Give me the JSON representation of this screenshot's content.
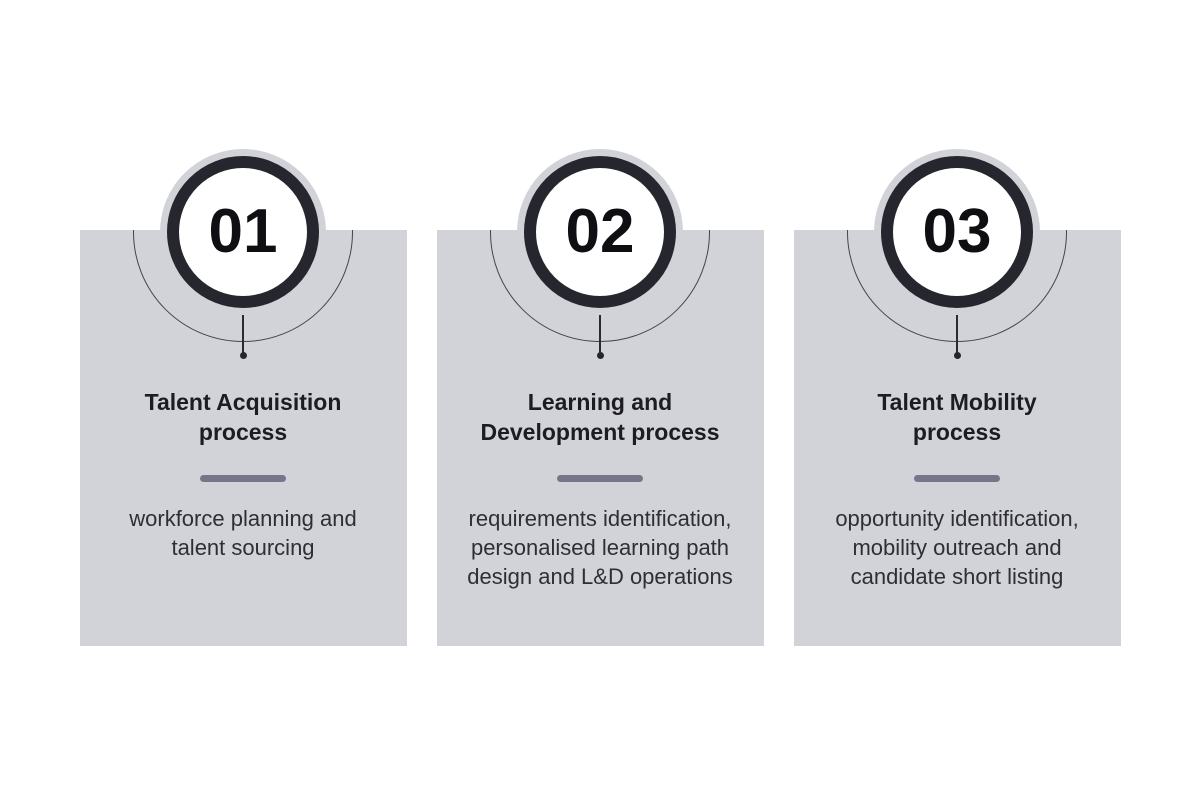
{
  "colors": {
    "page_background": "#ffffff",
    "card_background": "#d2d2d9",
    "circle_ring": "#26262e",
    "circle_fill": "#ffffff",
    "circle_halo": "#d2d2d9",
    "connector_line": "#44444b",
    "divider": "#76768a",
    "number_text": "#0f0f13",
    "title_text": "#1c1c21",
    "description_text": "#2e2e33"
  },
  "cards": [
    {
      "number": "01",
      "title": "Talent Acquisition\nprocess",
      "description": "workforce planning and\ntalent sourcing"
    },
    {
      "number": "02",
      "title": "Learning and\nDevelopment process",
      "description": "requirements identification,\npersonalised learning path\ndesign and L&D operations"
    },
    {
      "number": "03",
      "title": "Talent Mobility\nprocess",
      "description": "opportunity identification,\nmobility outreach and\ncandidate short listing"
    }
  ]
}
